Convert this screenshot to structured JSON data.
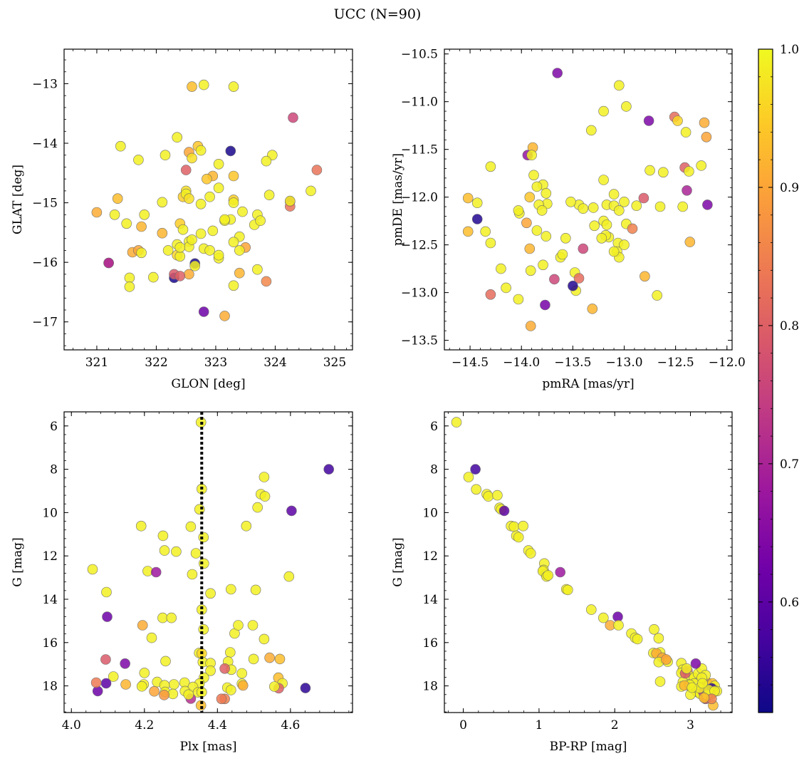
{
  "figure": {
    "suptitle": "UCC (N=90)"
  },
  "colorbar": {
    "vmin": 0.52,
    "vmax": 1.0,
    "ticks": [
      "0.6",
      "0.7",
      "0.8",
      "0.9",
      "1.0"
    ],
    "tick_values": [
      0.6,
      0.7,
      0.8,
      0.9,
      1.0
    ],
    "colormap": "plasma",
    "stops": [
      "#0d0887",
      "#46039f",
      "#7201a8",
      "#9c179e",
      "#bd3786",
      "#d8576b",
      "#ed7953",
      "#fb9f3a",
      "#fdca26",
      "#f0f921"
    ]
  },
  "chart_data": [
    {
      "id": "lonlat",
      "type": "scatter",
      "title": "",
      "xlabel": "GLON [deg]",
      "ylabel": "GLAT [deg]",
      "xlim": [
        320.45,
        325.3
      ],
      "ylim": [
        -17.47,
        -12.42
      ],
      "xticks": [
        321,
        322,
        323,
        324,
        325
      ],
      "xticklabels": [
        "321",
        "322",
        "323",
        "324",
        "325"
      ],
      "yticks": [
        -13,
        -14,
        -15,
        -16,
        -17
      ],
      "yticklabels": [
        "−13",
        "−14",
        "−15",
        "−16",
        "−17"
      ],
      "x": [
        322.6,
        322.8,
        323.3,
        324.3,
        322.35,
        321.4,
        322.15,
        322.55,
        322.7,
        322.75,
        323.25,
        323.3,
        323.95,
        322.6,
        323.05,
        321.7,
        322.5,
        322.95,
        323.9,
        324.7,
        322.5,
        322.85,
        322.45,
        322.9,
        323.3,
        323.05,
        322.5,
        324.6,
        321.35,
        322.55,
        323.85,
        322.1,
        322.75,
        323.3,
        324.25,
        324.25,
        321.0,
        323.25,
        323.45,
        321.75,
        322.4,
        323.15,
        323.7,
        323.65,
        322.45,
        322.95,
        322.1,
        323.4,
        322.55,
        321.6,
        323.5,
        322.35,
        322.55,
        322.8,
        322.9,
        323.05,
        321.7,
        321.2,
        321.75,
        322.35,
        322.65,
        322.65,
        323.05,
        323.7,
        322.55,
        321.55,
        321.95,
        322.3,
        323.4,
        323.85,
        322.3,
        321.55,
        323.3,
        322.8,
        323.15,
        321.2,
        322.4,
        322.2,
        323.15,
        322.6,
        322.75,
        323.3,
        323.75,
        322.4,
        321.3,
        322.4,
        321.5,
        324.25,
        321.8,
        323.4
      ],
      "y": [
        -13.05,
        -13.02,
        -13.05,
        -13.57,
        -13.9,
        -14.05,
        -14.2,
        -14.15,
        -14.05,
        -14.12,
        -14.13,
        -14.55,
        -14.2,
        -14.25,
        -14.35,
        -14.28,
        -14.45,
        -14.55,
        -14.87,
        -14.45,
        -14.8,
        -14.6,
        -14.9,
        -14.9,
        -14.95,
        -14.75,
        -14.85,
        -14.8,
        -14.93,
        -14.93,
        -14.3,
        -14.99,
        -15.02,
        -15.0,
        -14.98,
        -15.06,
        -15.16,
        -15.28,
        -15.15,
        -15.4,
        -15.35,
        -15.3,
        -15.2,
        -15.37,
        -15.45,
        -15.47,
        -15.51,
        -15.57,
        -15.65,
        -15.83,
        -15.75,
        -15.7,
        -15.74,
        -15.77,
        -15.8,
        -15.93,
        -15.8,
        -16.01,
        -15.84,
        -15.88,
        -16.02,
        -16.06,
        -15.88,
        -16.12,
        -16.2,
        -16.26,
        -16.25,
        -16.26,
        -16.18,
        -16.32,
        -16.2,
        -16.41,
        -16.39,
        -16.83,
        -16.9,
        -16.01,
        -15.9,
        -15.8,
        -15.28,
        -15.62,
        -15.52,
        -15.66,
        -15.3,
        -16.23,
        -15.2,
        -15.75,
        -15.35,
        -14.97,
        -15.2,
        -15.8
      ],
      "c": [
        0.93,
        0.99,
        0.99,
        0.76,
        0.99,
        0.99,
        0.99,
        0.9,
        0.94,
        0.99,
        0.53,
        0.94,
        0.99,
        0.97,
        0.99,
        0.99,
        0.8,
        0.92,
        0.99,
        0.83,
        0.97,
        0.94,
        0.95,
        0.99,
        0.95,
        0.99,
        0.99,
        0.99,
        0.93,
        0.97,
        0.99,
        0.99,
        0.99,
        0.99,
        0.72,
        0.83,
        0.91,
        0.99,
        0.99,
        0.92,
        0.95,
        0.99,
        0.99,
        0.99,
        0.99,
        0.99,
        0.92,
        0.99,
        0.99,
        0.91,
        0.9,
        0.99,
        0.99,
        0.99,
        0.99,
        0.99,
        0.9,
        0.67,
        0.99,
        0.96,
        0.53,
        0.99,
        0.99,
        0.99,
        0.91,
        0.99,
        0.99,
        0.53,
        0.92,
        0.86,
        0.79,
        0.99,
        0.99,
        0.62,
        0.91,
        0.72,
        0.99,
        0.99,
        0.99,
        0.99,
        0.99,
        0.99,
        0.99,
        0.8,
        0.99,
        0.99,
        0.99,
        0.99,
        0.99,
        0.99
      ]
    },
    {
      "id": "pm",
      "type": "scatter",
      "title": "",
      "xlabel": "pmRA [mas/yr]",
      "ylabel": "pmDE [mas/yr]",
      "xlim": [
        -14.75,
        -11.95
      ],
      "ylim": [
        -13.6,
        -10.45
      ],
      "xticks": [
        -14.5,
        -14.0,
        -13.5,
        -13.0,
        -12.5,
        -12.0
      ],
      "xticklabels": [
        "−14.5",
        "−14.0",
        "−13.5",
        "−13.0",
        "−12.5",
        "−12.0"
      ],
      "yticks": [
        -10.5,
        -11.0,
        -11.5,
        -12.0,
        -12.5,
        -13.0,
        -13.5
      ],
      "yticklabels": [
        "−10.5",
        "−11.0",
        "−11.5",
        "−12.0",
        "−12.5",
        "−13.0",
        "−13.5"
      ],
      "x": [
        -13.65,
        -13.05,
        -12.98,
        -12.76,
        -12.51,
        -12.48,
        -12.22,
        -12.4,
        -12.2,
        -13.32,
        -13.2,
        -13.94,
        -13.89,
        -14.3,
        -12.41,
        -12.37,
        -12.25,
        -12.75,
        -12.62,
        -13.88,
        -13.79,
        -13.85,
        -13.76,
        -13.1,
        -13.2,
        -12.39,
        -14.52,
        -14.43,
        -13.92,
        -13.75,
        -13.83,
        -13.3,
        -13.17,
        -13.44,
        -13.52,
        -12.81,
        -12.88,
        -13.1,
        -14.02,
        -13.4,
        -13.05,
        -14.43,
        -13.2,
        -12.98,
        -14.35,
        -14.52,
        -13.95,
        -13.17,
        -13.29,
        -14.03,
        -13.76,
        -13.85,
        -13.06,
        -14.3,
        -13.57,
        -13.62,
        -13.4,
        -13.07,
        -13.05,
        -12.36,
        -14.2,
        -13.92,
        -13.48,
        -13.79,
        -13.44,
        -12.8,
        -13.47,
        -13.68,
        -14.3,
        -13.31,
        -14.03,
        -13.91,
        -13.15,
        -12.43,
        -12.19,
        -12.68,
        -13.91,
        -13.18,
        -13.22,
        -13.0,
        -12.92,
        -13.8,
        -13.9,
        -13.77,
        -14.15,
        -13.6,
        -13.0,
        -12.65,
        -13.5,
        -13.1
      ],
      "y": [
        -10.7,
        -10.83,
        -11.05,
        -11.2,
        -11.16,
        -11.2,
        -11.22,
        -11.32,
        -11.37,
        -11.3,
        -11.1,
        -11.56,
        -11.48,
        -11.68,
        -11.69,
        -11.73,
        -11.67,
        -11.72,
        -11.74,
        -11.77,
        -11.87,
        -11.89,
        -11.96,
        -11.97,
        -11.82,
        -11.93,
        -12.01,
        -12.06,
        -12.0,
        -12.07,
        -12.08,
        -12.11,
        -12.08,
        -12.08,
        -12.05,
        -12.01,
        -12.09,
        -12.09,
        -12.17,
        -12.12,
        -12.14,
        -12.23,
        -12.25,
        -12.28,
        -12.36,
        -12.36,
        -12.27,
        -12.29,
        -12.3,
        -12.14,
        -12.41,
        -12.35,
        -12.48,
        -12.48,
        -12.43,
        -12.63,
        -12.54,
        -12.57,
        -12.63,
        -12.47,
        -12.75,
        -12.54,
        -12.79,
        -12.71,
        -12.85,
        -12.83,
        -12.98,
        -12.86,
        -13.02,
        -13.17,
        -13.07,
        -13.35,
        -12.42,
        -12.1,
        -12.08,
        -13.03,
        -12.77,
        -12.4,
        -12.43,
        -12.5,
        -12.33,
        -12.14,
        -11.56,
        -13.13,
        -12.95,
        -12.6,
        -12.05,
        -12.1,
        -12.93,
        -12.57
      ],
      "c": [
        0.64,
        0.99,
        0.99,
        0.64,
        0.82,
        0.96,
        0.91,
        0.99,
        0.9,
        0.99,
        0.99,
        0.67,
        0.92,
        0.99,
        0.8,
        0.99,
        0.99,
        0.99,
        0.99,
        0.99,
        0.99,
        0.99,
        0.99,
        0.99,
        0.99,
        0.7,
        0.93,
        0.99,
        0.94,
        0.99,
        0.99,
        0.99,
        0.99,
        0.99,
        0.99,
        0.79,
        0.99,
        0.99,
        0.99,
        0.99,
        0.99,
        0.54,
        0.99,
        0.99,
        0.99,
        0.93,
        0.9,
        0.99,
        0.99,
        0.99,
        0.99,
        0.99,
        0.99,
        0.99,
        0.99,
        0.99,
        0.76,
        0.99,
        0.99,
        0.92,
        0.99,
        0.92,
        0.99,
        0.99,
        0.82,
        0.92,
        0.99,
        0.76,
        0.82,
        0.92,
        0.99,
        0.91,
        0.99,
        0.99,
        0.64,
        0.99,
        0.99,
        0.99,
        0.99,
        0.99,
        0.85,
        0.99,
        0.99,
        0.63,
        0.99,
        0.99,
        0.99,
        0.99,
        0.54,
        0.99
      ]
    },
    {
      "id": "plx",
      "type": "scatter",
      "title": "",
      "xlabel": "Plx [mas]",
      "ylabel": "G [mag]",
      "xlim": [
        3.98,
        4.77
      ],
      "ylim": [
        19.23,
        5.35
      ],
      "inverted_y": true,
      "vline": 4.357,
      "xticks": [
        4.0,
        4.2,
        4.4,
        4.6
      ],
      "xticklabels": [
        "4.0",
        "4.2",
        "4.4",
        "4.6"
      ],
      "yticks": [
        6,
        8,
        10,
        12,
        14,
        16,
        18
      ],
      "yticklabels": [
        "6",
        "8",
        "10",
        "12",
        "14",
        "16",
        "18"
      ],
      "x": [
        4.355,
        4.705,
        4.528,
        4.519,
        4.53,
        4.357,
        4.51,
        4.603,
        4.351,
        4.191,
        4.327,
        4.479,
        4.362,
        4.251,
        4.287,
        4.255,
        4.341,
        4.363,
        4.209,
        4.596,
        4.232,
        4.331,
        4.058,
        4.381,
        4.437,
        4.505,
        4.096,
        4.357,
        4.25,
        4.274,
        4.447,
        4.362,
        4.497,
        4.098,
        4.195,
        4.457,
        4.528,
        4.22,
        4.35,
        4.357,
        4.435,
        4.499,
        4.36,
        4.571,
        4.543,
        4.381,
        4.429,
        4.147,
        4.094,
        4.258,
        4.381,
        4.438,
        4.42,
        4.363,
        4.467,
        4.2,
        4.115,
        4.351,
        4.467,
        4.235,
        4.281,
        4.31,
        4.567,
        4.578,
        4.198,
        4.193,
        4.095,
        4.255,
        4.333,
        4.427,
        4.149,
        4.311,
        4.47,
        4.072,
        4.437,
        4.568,
        4.068,
        4.556,
        4.257,
        4.347,
        4.227,
        4.278,
        4.357,
        4.42,
        4.254,
        4.641,
        4.327,
        4.411,
        4.355,
        4.321
      ],
      "y": [
        5.83,
        8.0,
        8.36,
        9.15,
        9.25,
        8.91,
        9.76,
        9.92,
        9.85,
        10.62,
        10.65,
        10.62,
        11.14,
        11.07,
        11.8,
        11.75,
        11.88,
        12.35,
        12.7,
        12.95,
        12.75,
        12.85,
        12.62,
        13.73,
        13.54,
        13.57,
        13.67,
        14.48,
        14.86,
        14.86,
        15.58,
        15.39,
        15.2,
        14.81,
        15.2,
        15.2,
        15.84,
        15.78,
        16.48,
        16.5,
        16.45,
        16.76,
        16.9,
        16.76,
        16.7,
        16.95,
        16.88,
        16.97,
        16.78,
        16.86,
        17.3,
        17.25,
        17.2,
        17.62,
        17.42,
        17.4,
        17.57,
        17.89,
        17.9,
        17.82,
        17.93,
        17.85,
        17.62,
        17.88,
        17.93,
        18.02,
        17.88,
        17.97,
        18.05,
        18.08,
        17.93,
        18.24,
        17.98,
        18.24,
        18.19,
        18.11,
        17.85,
        18.03,
        18.28,
        18.3,
        18.25,
        18.37,
        18.29,
        18.6,
        18.42,
        18.1,
        18.59,
        18.6,
        18.9,
        18.4
      ],
      "c": [
        0.99,
        0.57,
        0.99,
        0.99,
        0.99,
        0.99,
        0.99,
        0.6,
        0.99,
        0.99,
        0.99,
        0.99,
        0.99,
        0.99,
        0.99,
        0.99,
        0.99,
        0.99,
        0.99,
        0.99,
        0.68,
        0.99,
        0.99,
        0.99,
        0.99,
        0.99,
        0.99,
        0.99,
        0.99,
        0.99,
        0.99,
        0.99,
        0.99,
        0.62,
        0.91,
        0.99,
        0.99,
        0.99,
        0.99,
        0.96,
        0.99,
        0.99,
        0.99,
        0.93,
        0.91,
        0.99,
        0.99,
        0.64,
        0.79,
        0.99,
        0.99,
        0.99,
        0.8,
        0.99,
        0.99,
        0.99,
        0.99,
        0.99,
        0.99,
        0.99,
        0.99,
        0.99,
        0.93,
        0.99,
        0.99,
        0.99,
        0.6,
        0.99,
        0.99,
        0.99,
        0.92,
        0.99,
        0.91,
        0.62,
        0.99,
        0.8,
        0.84,
        0.99,
        0.99,
        0.99,
        0.9,
        0.99,
        0.99,
        0.85,
        0.88,
        0.55,
        0.72,
        0.84,
        0.93,
        0.99
      ]
    },
    {
      "id": "cmd",
      "type": "scatter",
      "title": "",
      "xlabel": "BP-RP [mag]",
      "ylabel": "G [mag]",
      "xlim": [
        -0.25,
        3.55
      ],
      "ylim": [
        19.23,
        5.35
      ],
      "inverted_y": true,
      "xticks": [
        0,
        1,
        2,
        3
      ],
      "xticklabels": [
        "0",
        "1",
        "2",
        "3"
      ],
      "yticks": [
        6,
        8,
        10,
        12,
        14,
        16,
        18
      ],
      "yticklabels": [
        "6",
        "8",
        "10",
        "12",
        "14",
        "16",
        "18"
      ],
      "x": [
        -0.09,
        0.16,
        0.07,
        0.17,
        0.31,
        0.33,
        0.45,
        0.48,
        0.5,
        0.54,
        0.63,
        0.67,
        0.7,
        0.73,
        0.79,
        0.86,
        0.89,
        1.07,
        1.06,
        1.09,
        1.28,
        1.05,
        1.1,
        1.12,
        1.36,
        1.38,
        1.69,
        1.85,
        1.94,
        2.04,
        2.05,
        2.22,
        2.27,
        2.3,
        2.52,
        2.58,
        2.6,
        2.51,
        2.55,
        2.65,
        2.63,
        2.7,
        2.88,
        2.9,
        2.88,
        2.96,
        3.0,
        3.05,
        3.1,
        3.15,
        3.18,
        3.22,
        3.2,
        3.25,
        3.29,
        3.32,
        3.35,
        3.28,
        3.3,
        3.1,
        3.0,
        2.97,
        2.9,
        2.88,
        3.05,
        3.08,
        3.13,
        3.17,
        3.2,
        3.27,
        3.0,
        3.2,
        3.3,
        3.22,
        2.99,
        3.12,
        3.24,
        2.92,
        3.32,
        3.15,
        2.58,
        2.68,
        2.6,
        3.07,
        3.16,
        2.93,
        2.95,
        3.28,
        3.02,
        3.18
      ],
      "y": [
        5.83,
        8.0,
        8.36,
        8.93,
        9.15,
        9.25,
        9.2,
        9.78,
        9.85,
        9.92,
        10.62,
        10.65,
        11.07,
        11.14,
        10.62,
        11.75,
        11.88,
        12.35,
        12.65,
        12.85,
        12.75,
        12.7,
        12.95,
        12.9,
        13.54,
        13.57,
        14.48,
        14.86,
        15.2,
        14.81,
        15.2,
        15.58,
        15.78,
        15.84,
        15.39,
        15.8,
        16.45,
        16.48,
        16.5,
        16.76,
        16.7,
        16.88,
        16.95,
        17.25,
        17.4,
        17.3,
        17.57,
        17.62,
        17.43,
        17.2,
        17.9,
        17.85,
        17.5,
        17.97,
        17.88,
        18.0,
        18.24,
        18.11,
        18.29,
        18.3,
        18.02,
        17.93,
        17.82,
        18.03,
        17.89,
        18.25,
        18.37,
        18.28,
        18.6,
        18.4,
        18.4,
        18.59,
        18.9,
        18.42,
        17.95,
        18.1,
        18.18,
        17.98,
        18.24,
        17.62,
        16.9,
        16.78,
        17.8,
        16.97,
        17.88,
        17.42,
        17.2,
        18.6,
        18.08,
        18.55
      ],
      "c": [
        0.99,
        0.57,
        0.99,
        0.99,
        0.99,
        0.99,
        0.99,
        0.99,
        0.99,
        0.6,
        0.99,
        0.99,
        0.99,
        0.99,
        0.99,
        0.99,
        0.99,
        0.99,
        0.99,
        0.99,
        0.68,
        0.99,
        0.99,
        0.99,
        0.99,
        0.99,
        0.99,
        0.99,
        0.91,
        0.62,
        0.99,
        0.99,
        0.99,
        0.99,
        0.99,
        0.99,
        0.99,
        0.99,
        0.91,
        0.93,
        0.91,
        0.99,
        0.99,
        0.99,
        0.99,
        0.8,
        0.99,
        0.99,
        0.99,
        0.99,
        0.99,
        0.85,
        0.99,
        0.99,
        0.93,
        0.99,
        0.99,
        0.55,
        0.99,
        0.99,
        0.99,
        0.99,
        0.99,
        0.99,
        0.99,
        0.99,
        0.99,
        0.72,
        0.84,
        0.93,
        0.99,
        0.8,
        0.93,
        0.99,
        0.99,
        0.99,
        0.99,
        0.92,
        0.99,
        0.99,
        0.99,
        0.9,
        0.99,
        0.64,
        0.99,
        0.79,
        0.99,
        0.85,
        0.99,
        0.93
      ]
    }
  ]
}
